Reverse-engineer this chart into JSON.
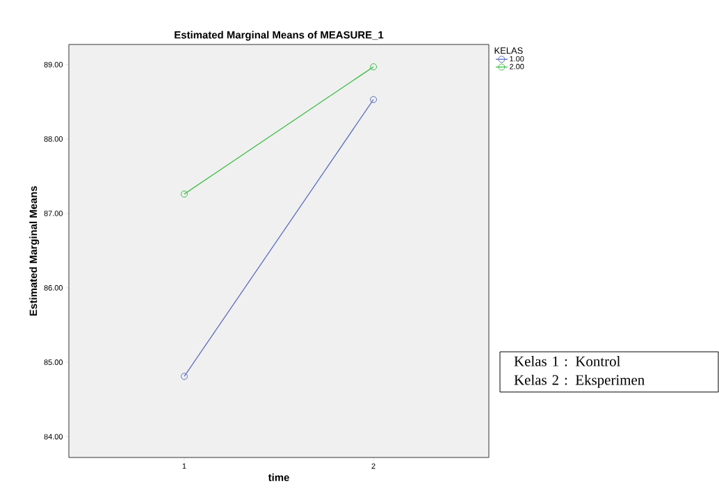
{
  "chart_data": {
    "type": "line",
    "title": "Estimated Marginal Means of MEASURE_1",
    "xlabel": "time",
    "ylabel": "Estimated Marginal Means",
    "legend_title": "KELAS",
    "categories": [
      "1",
      "2"
    ],
    "series": [
      {
        "name": "1.00",
        "color": "#5a6ec0",
        "values": [
          84.81,
          88.53
        ]
      },
      {
        "name": "2.00",
        "color": "#3cbe46",
        "values": [
          87.26,
          88.97
        ]
      }
    ],
    "ylim": [
      83.72,
      89.27
    ],
    "yticks": [
      {
        "value": 84,
        "label": "84.00"
      },
      {
        "value": 85,
        "label": "85.00"
      },
      {
        "value": 86,
        "label": "86.00"
      },
      {
        "value": 87,
        "label": "87.00"
      },
      {
        "value": 88,
        "label": "88.00"
      },
      {
        "value": 89,
        "label": "89.00"
      }
    ],
    "legend": "top right",
    "marker": "circle",
    "line_style": "solid",
    "grid": false,
    "annotations": [
      "Kelas 1 : Kontrol",
      "Kelas 2 : Eksperimen"
    ]
  }
}
